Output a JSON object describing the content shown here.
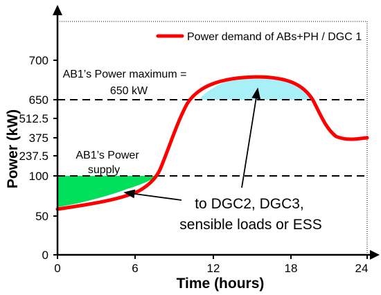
{
  "chart_data": {
    "type": "line",
    "xlabel": "Time (hours)",
    "ylabel": "Power (kW)",
    "x_ticks": [
      "0",
      "6",
      "12",
      "18",
      "24"
    ],
    "y_ticks": [
      "0",
      "50",
      "100",
      "237.5",
      "375",
      "512.5",
      "650",
      "700"
    ],
    "xlim": [
      0,
      24
    ],
    "series": [
      {
        "name": "Power demand of ABs+PH / DGC 1",
        "color": "#ff0000",
        "x": [
          0,
          1,
          2,
          3,
          4,
          5,
          6,
          7,
          8,
          9,
          10,
          11,
          12,
          13,
          14,
          15,
          16,
          17,
          18,
          19,
          20,
          21,
          22,
          23,
          24
        ],
        "y": [
          58,
          62,
          65,
          68,
          71,
          75,
          80,
          87,
          100,
          160,
          300,
          520,
          640,
          655,
          660,
          662,
          663,
          662,
          660,
          655,
          640,
          390,
          365,
          363,
          366
        ]
      }
    ],
    "reference_lines": [
      {
        "y": 650,
        "style": "dashed"
      },
      {
        "y": 100,
        "style": "dashed"
      }
    ],
    "fills": [
      {
        "color": "#00e05a",
        "region": "between demand curve and 100 kW line, 0–8 h"
      },
      {
        "color": "#a8f0f8",
        "region": "between 650 kW line and demand curve, 11–20 h"
      }
    ],
    "annotations": {
      "power_max": [
        "AB1’s Power maximum =",
        "650 kW"
      ],
      "power_supply": [
        "AB1’s Power",
        "supply"
      ],
      "destination": [
        "to DGC2, DGC3,",
        "sensible loads or ESS"
      ]
    }
  }
}
